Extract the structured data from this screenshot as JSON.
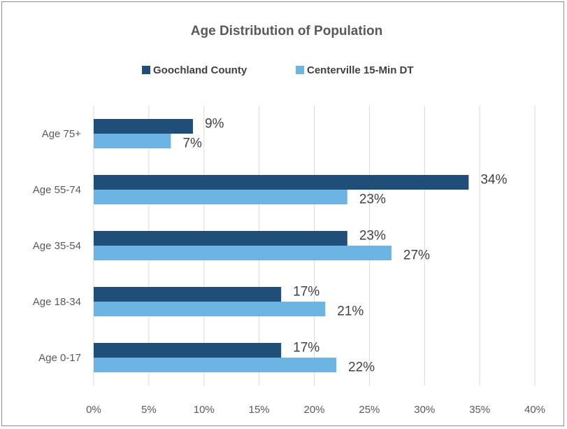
{
  "chart_data": {
    "type": "bar",
    "orientation": "horizontal",
    "title": "Age Distribution of Population",
    "categories": [
      "Age 75+",
      "Age 55-74",
      "Age 35-54",
      "Age 18-34",
      "Age 0-17"
    ],
    "series": [
      {
        "name": "Goochland County",
        "values": [
          9,
          34,
          23,
          17,
          17
        ],
        "labels": [
          "9%",
          "34%",
          "23%",
          "17%",
          "17%"
        ],
        "color": "#1f4e79"
      },
      {
        "name": "Centerville 15-Min DT",
        "values": [
          7,
          23,
          27,
          21,
          22
        ],
        "labels": [
          "7%",
          "23%",
          "27%",
          "21%",
          "22%"
        ],
        "color": "#6cb4e4"
      }
    ],
    "xlim": [
      0,
      40
    ],
    "x_ticks": [
      0,
      5,
      10,
      15,
      20,
      25,
      30,
      35,
      40
    ],
    "x_tick_labels": [
      "0%",
      "5%",
      "10%",
      "15%",
      "20%",
      "25%",
      "30%",
      "35%",
      "40%"
    ],
    "grid": "vertical",
    "legend": "top-center"
  }
}
